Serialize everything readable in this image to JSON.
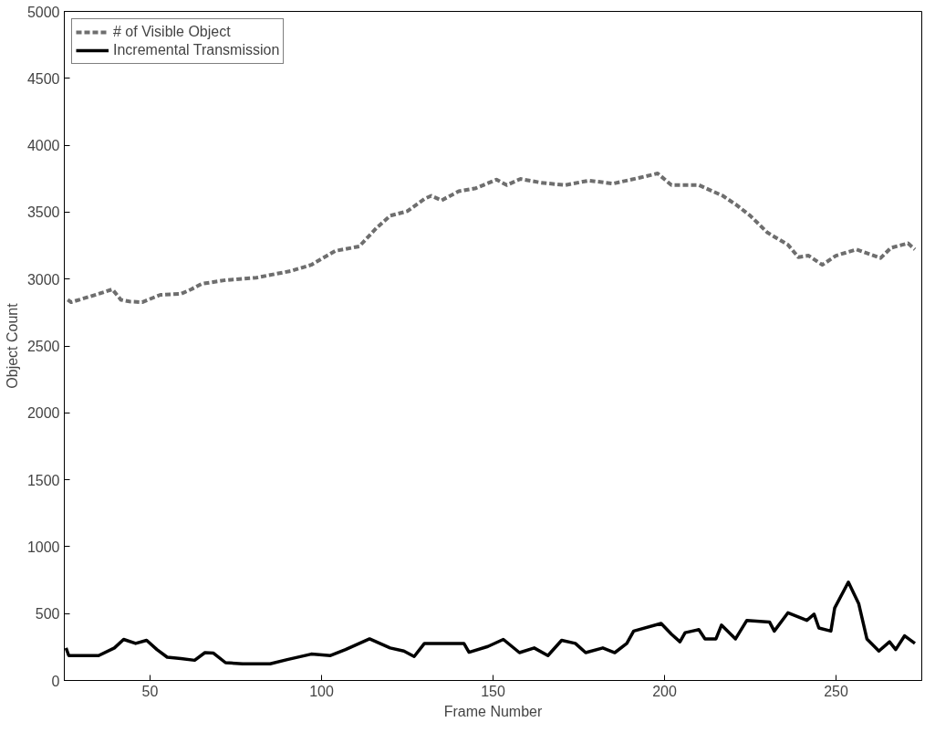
{
  "chart_data": {
    "type": "line",
    "xlabel": "Frame Number",
    "ylabel": "Object Count",
    "xlim": [
      25,
      275
    ],
    "ylim": [
      0,
      5000
    ],
    "xticks": [
      50,
      100,
      150,
      200,
      250
    ],
    "yticks": [
      0,
      500,
      1000,
      1500,
      2000,
      2500,
      3000,
      3500,
      4000,
      4500,
      5000
    ],
    "grid": false,
    "legend": "top left",
    "marker": "none",
    "series": [
      {
        "name": "# of Visible Object",
        "color": "#6e6e6e",
        "line_style": "dashed",
        "x": [
          26,
          27,
          35,
          39,
          41.5,
          44,
          47.7,
          53,
          59,
          62,
          65,
          72,
          81,
          91,
          97,
          104,
          111,
          116,
          120,
          125,
          130,
          132,
          135,
          140,
          145,
          151,
          154,
          158,
          164,
          171,
          178,
          185,
          193,
          198,
          202,
          210,
          217,
          221,
          225,
          230,
          236,
          239,
          242,
          246,
          250,
          256,
          263,
          266,
          271,
          273
        ],
        "values": [
          2845,
          2827,
          2889,
          2923,
          2845,
          2832,
          2827,
          2882,
          2889,
          2923,
          2964,
          2992,
          3010,
          3060,
          3106,
          3210,
          3244,
          3381,
          3473,
          3507,
          3599,
          3622,
          3588,
          3656,
          3679,
          3743,
          3702,
          3748,
          3720,
          3702,
          3736,
          3713,
          3759,
          3789,
          3702,
          3702,
          3622,
          3553,
          3473,
          3347,
          3256,
          3164,
          3175,
          3106,
          3175,
          3221,
          3157,
          3233,
          3267,
          3221
        ]
      },
      {
        "name": "Incremental Transmission",
        "color": "#000000",
        "line_style": "solid",
        "x": [
          25.5,
          26.3,
          35,
          39.6,
          42.3,
          45.8,
          49,
          52,
          55,
          59,
          63,
          66,
          68.5,
          72,
          77,
          85,
          90,
          97,
          102.6,
          107,
          114,
          120,
          124,
          127,
          130,
          141.5,
          143,
          148.5,
          153,
          157.7,
          162,
          166,
          170,
          174,
          177,
          182,
          185.5,
          189,
          191,
          199,
          202,
          204.5,
          206,
          210,
          211.8,
          215,
          216.6,
          220.7,
          224,
          230.6,
          232,
          236,
          241.5,
          243.6,
          245,
          248.5,
          249.6,
          253.6,
          256.6,
          259,
          262.5,
          265.6,
          267.4,
          270,
          273
        ],
        "values": [
          243,
          186,
          186,
          243,
          307,
          277,
          300,
          231,
          174,
          163,
          151,
          208,
          204,
          133,
          124,
          124,
          156,
          197,
          186,
          231,
          311,
          243,
          220,
          179,
          277,
          277,
          211,
          254,
          307,
          208,
          243,
          186,
          300,
          277,
          208,
          243,
          208,
          277,
          369,
          426,
          346,
          289,
          357,
          380,
          311,
          311,
          414,
          311,
          449,
          437,
          369,
          506,
          449,
          495,
          392,
          369,
          541,
          735,
          575,
          311,
          220,
          289,
          231,
          334,
          277
        ]
      }
    ]
  }
}
